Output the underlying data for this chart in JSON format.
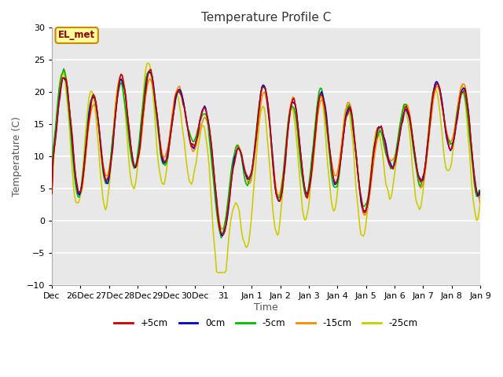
{
  "title": "Temperature Profile C",
  "xlabel": "Time",
  "ylabel": "Temperature (C)",
  "ylim": [
    -10,
    30
  ],
  "yticks": [
    -10,
    -5,
    0,
    5,
    10,
    15,
    20,
    25,
    30
  ],
  "x_labels": [
    "Dec",
    "26Dec",
    "27Dec",
    "28Dec",
    "29Dec",
    "30Dec",
    "31",
    "Jan 1",
    "Jan 2",
    "Jan 3",
    "Jan 4",
    "Jan 5",
    "Jan 6",
    "Jan 7",
    "Jan 8",
    "Jan 9"
  ],
  "x_tick_pos": [
    0,
    1,
    2,
    3,
    4,
    5,
    6,
    7,
    8,
    9,
    10,
    11,
    12,
    13,
    14,
    15
  ],
  "legend_labels": [
    "+5cm",
    "0cm",
    "-5cm",
    "-15cm",
    "-25cm"
  ],
  "legend_colors": [
    "#cc0000",
    "#0000cc",
    "#00bb00",
    "#ff8800",
    "#cccc00"
  ],
  "annotation_text": "EL_met",
  "annotation_color": "#8b0000",
  "annotation_bg": "#ffff99",
  "annotation_border": "#cc8800",
  "fig_bg_color": "#ffffff",
  "plot_bg_color": "#e8e8e8",
  "grid_color": "#ffffff",
  "title_fontsize": 11,
  "axis_fontsize": 9,
  "tick_fontsize": 8,
  "line_width": 1.2
}
